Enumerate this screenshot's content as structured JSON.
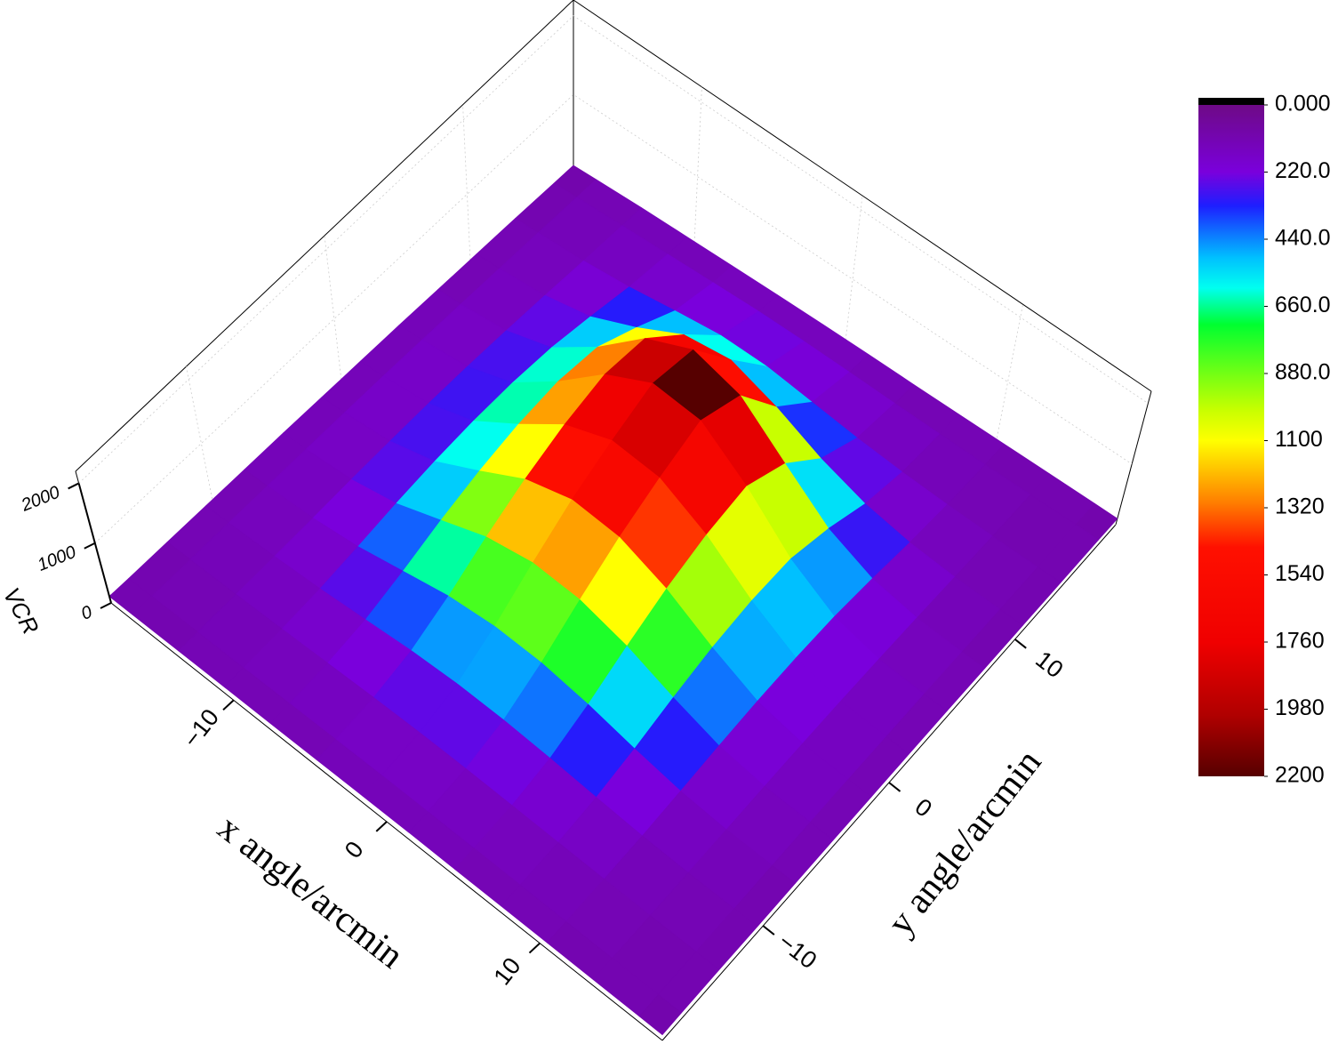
{
  "chart_data": {
    "type": "surface",
    "x_label": "x angle/arcmin",
    "y_label": "y angle/arcmin",
    "z_label": "VCR",
    "x": [
      -18,
      -15,
      -12,
      -9,
      -6,
      -3,
      0,
      3,
      6,
      9,
      12,
      15,
      18
    ],
    "y": [
      -18,
      -15,
      -12,
      -9,
      -6,
      -3,
      0,
      3,
      6,
      9,
      12,
      15,
      18
    ],
    "z": [
      [
        110,
        110,
        120,
        120,
        120,
        130,
        130,
        130,
        120,
        120,
        110,
        110,
        100
      ],
      [
        110,
        120,
        130,
        140,
        150,
        160,
        160,
        150,
        140,
        130,
        120,
        110,
        110
      ],
      [
        120,
        130,
        150,
        180,
        220,
        250,
        250,
        230,
        190,
        160,
        130,
        120,
        110
      ],
      [
        120,
        140,
        180,
        260,
        380,
        460,
        470,
        420,
        320,
        220,
        150,
        130,
        110
      ],
      [
        130,
        150,
        220,
        400,
        650,
        820,
        850,
        760,
        540,
        320,
        180,
        140,
        120
      ],
      [
        130,
        160,
        260,
        520,
        900,
        1200,
        1250,
        1100,
        780,
        420,
        200,
        150,
        120
      ],
      [
        130,
        170,
        280,
        600,
        1100,
        1500,
        1600,
        1400,
        950,
        480,
        220,
        150,
        120
      ],
      [
        130,
        170,
        290,
        640,
        1250,
        1750,
        1850,
        1650,
        1050,
        500,
        220,
        150,
        120
      ],
      [
        130,
        160,
        280,
        620,
        1300,
        1900,
        2200,
        1800,
        1000,
        460,
        210,
        140,
        120
      ],
      [
        120,
        150,
        250,
        520,
        1100,
        1650,
        1500,
        1000,
        550,
        300,
        180,
        130,
        110
      ],
      [
        120,
        140,
        200,
        320,
        500,
        600,
        500,
        350,
        250,
        180,
        140,
        120,
        110
      ],
      [
        110,
        130,
        150,
        180,
        220,
        230,
        210,
        180,
        150,
        130,
        120,
        110,
        110
      ],
      [
        100,
        120,
        130,
        130,
        140,
        140,
        140,
        130,
        120,
        120,
        110,
        110,
        100
      ]
    ],
    "xlim": [
      -18,
      18
    ],
    "ylim": [
      -18,
      18
    ],
    "zlim": [
      0,
      2200
    ],
    "xticks": [
      {
        "value": -10,
        "label": "−10"
      },
      0,
      10
    ],
    "yticks": [
      {
        "value": -10,
        "label": "−10"
      },
      0,
      10
    ],
    "zticks": [
      0,
      1000,
      2000
    ],
    "colorbar_ticks": [
      {
        "value": 0,
        "label": "0.000"
      },
      {
        "value": 220,
        "label": "220.0"
      },
      {
        "value": 440,
        "label": "440.0"
      },
      {
        "value": 660,
        "label": "660.0"
      },
      {
        "value": 880,
        "label": "880.0"
      },
      1100,
      1320,
      1540,
      1760,
      1980,
      2200
    ],
    "colorscale": [
      {
        "value": 0,
        "color": "#6e0a86"
      },
      {
        "value": 220,
        "color": "#7a00dc"
      },
      {
        "value": 330,
        "color": "#1e1eff"
      },
      {
        "value": 500,
        "color": "#00c0ff"
      },
      {
        "value": 600,
        "color": "#00fff0"
      },
      {
        "value": 720,
        "color": "#00ff30"
      },
      {
        "value": 1000,
        "color": "#c8ff00"
      },
      {
        "value": 1100,
        "color": "#ffff00"
      },
      {
        "value": 1300,
        "color": "#ff8000"
      },
      {
        "value": 1450,
        "color": "#ff1000"
      },
      {
        "value": 1760,
        "color": "#f00000"
      },
      {
        "value": 2000,
        "color": "#b00000"
      },
      {
        "value": 2200,
        "color": "#560000"
      }
    ]
  }
}
